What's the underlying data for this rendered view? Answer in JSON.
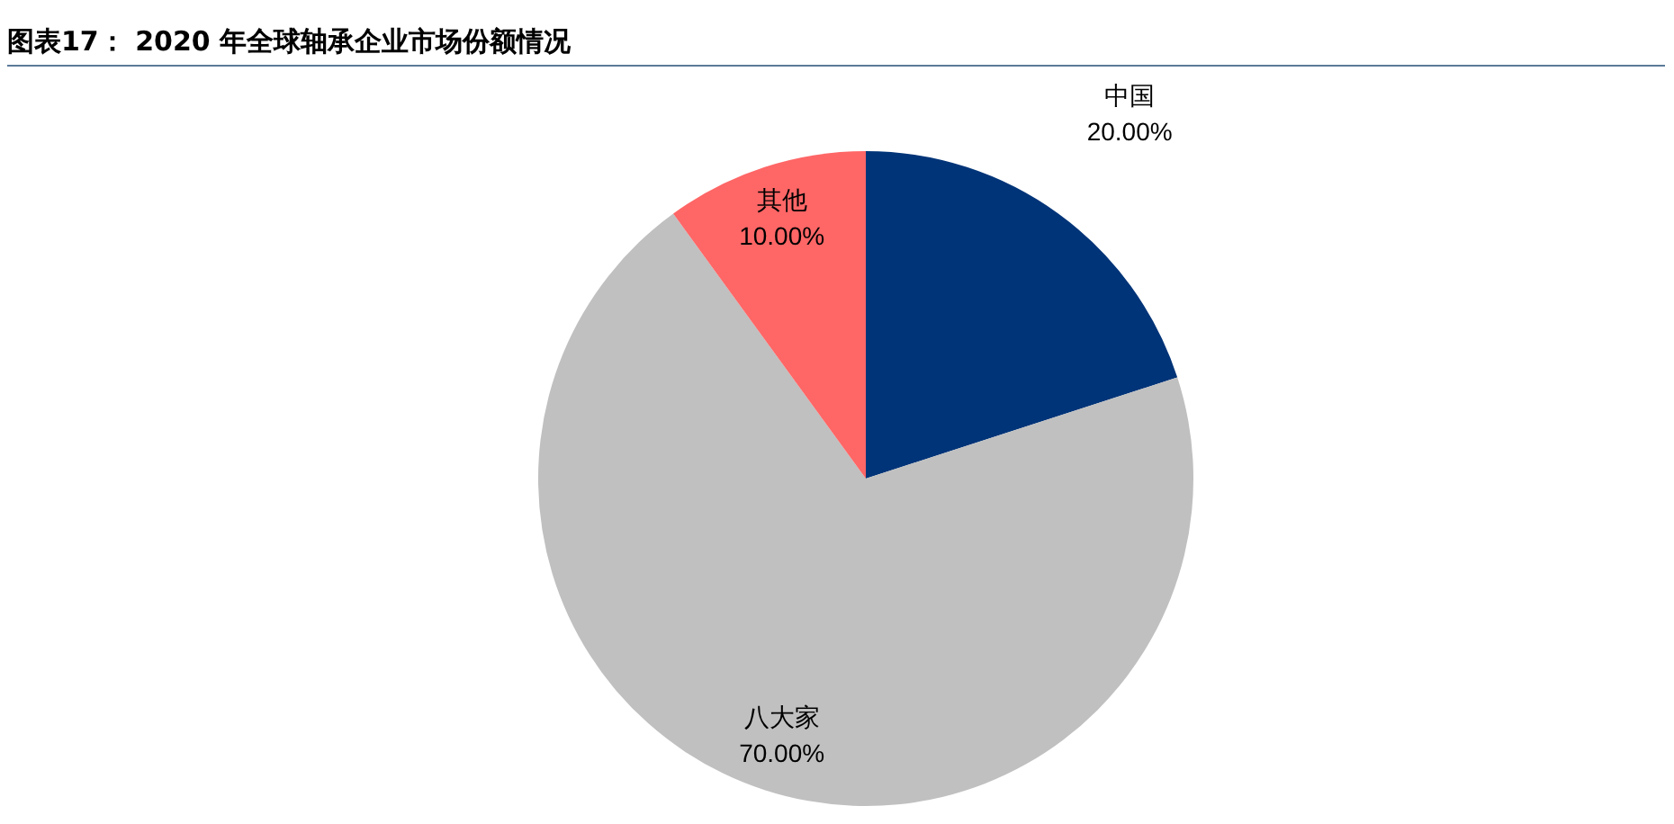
{
  "chart_data": {
    "type": "pie",
    "title": "图表17： 2020 年全球轴承企业市场份额情况",
    "categories": [
      "中国",
      "八大家",
      "其他"
    ],
    "values": [
      20,
      70,
      10
    ],
    "colors": [
      "#003478",
      "#c0c0c0",
      "#ff6666"
    ],
    "value_labels": [
      "20.00%",
      "70.00%",
      "10.00%"
    ],
    "legend": false
  }
}
